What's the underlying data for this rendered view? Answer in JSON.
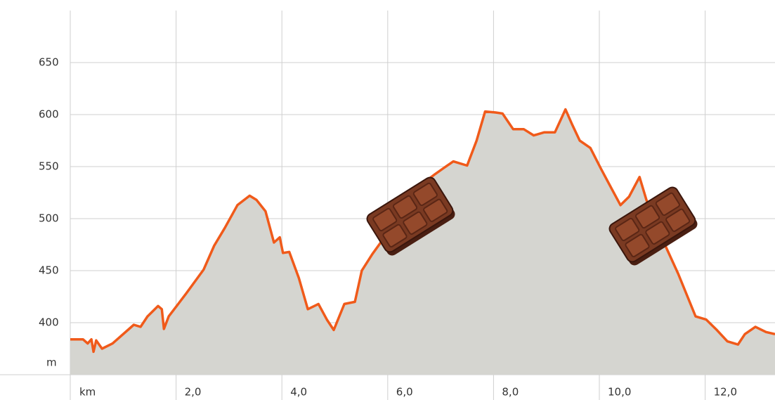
{
  "chart_data": {
    "type": "area",
    "x_unit": "km",
    "y_unit": "m",
    "x": [
      0,
      0.24,
      0.33,
      0.4,
      0.44,
      0.49,
      0.6,
      0.8,
      1.2,
      1.33,
      1.46,
      1.66,
      1.73,
      1.77,
      1.86,
      2.19,
      2.52,
      2.72,
      2.92,
      3.16,
      3.39,
      3.52,
      3.69,
      3.85,
      3.96,
      4.02,
      4.14,
      4.32,
      4.49,
      4.69,
      4.85,
      4.98,
      5.18,
      5.38,
      5.51,
      5.71,
      5.91,
      6.11,
      6.37,
      6.64,
      6.9,
      7.04,
      7.24,
      7.5,
      7.68,
      7.84,
      8.04,
      8.17,
      8.37,
      8.57,
      8.76,
      8.96,
      9.16,
      9.36,
      9.49,
      9.63,
      9.83,
      10.03,
      10.23,
      10.4,
      10.56,
      10.76,
      10.89,
      11.22,
      11.49,
      11.82,
      12.02,
      12.22,
      12.42,
      12.62,
      12.75,
      12.95,
      13.15,
      13.32
    ],
    "values": [
      384,
      384,
      380,
      384,
      372,
      383,
      375,
      380,
      398,
      396,
      406,
      416,
      413,
      394,
      406,
      428,
      451,
      474,
      491,
      513,
      522,
      518,
      507,
      477,
      482,
      467,
      468,
      443,
      413,
      418,
      403,
      393,
      418,
      420,
      450,
      466,
      480,
      499,
      518,
      533,
      543,
      548,
      555,
      551,
      575,
      603,
      602,
      601,
      586,
      586,
      580,
      583,
      583,
      605,
      590,
      575,
      568,
      548,
      529,
      513,
      521,
      540,
      518,
      477,
      447,
      406,
      403,
      393,
      382,
      379,
      389,
      396,
      391,
      389
    ],
    "color": "#f05a1a",
    "fill": "#d5d5d0",
    "xlim": [
      0,
      13.32
    ],
    "ylim": [
      350,
      700
    ],
    "xticks": [
      {
        "value": 2,
        "label": "2,0"
      },
      {
        "value": 4,
        "label": "4,0"
      },
      {
        "value": 6,
        "label": "6,0"
      },
      {
        "value": 8,
        "label": "8,0"
      },
      {
        "value": 10,
        "label": "10,0"
      },
      {
        "value": 12,
        "label": "12,0"
      }
    ],
    "yticks": [
      400,
      450,
      500,
      550,
      600,
      650
    ],
    "grid": true
  }
}
